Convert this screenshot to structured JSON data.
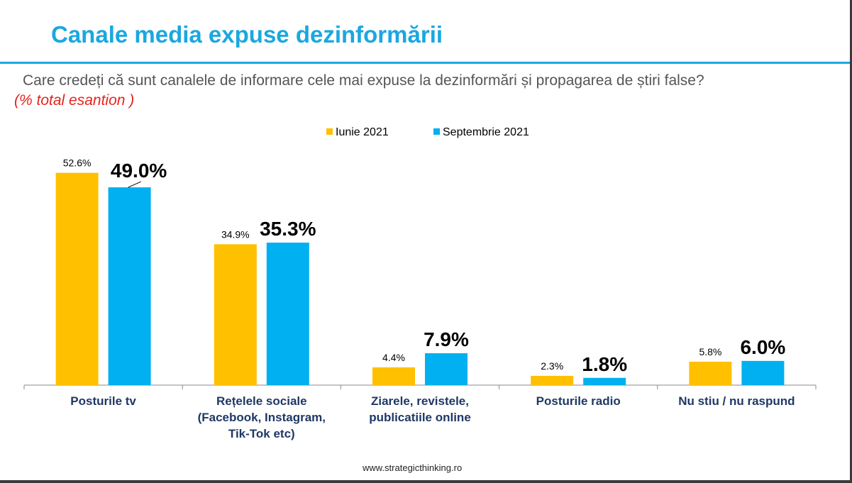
{
  "slide": {
    "title": "Canale media expuse dezinformării",
    "question": "Care credeți că sunt canalele de informare cele mai expuse la dezinformări și propagarea de știri false?",
    "sample_note": "(% total esantion )",
    "footer_url": "www.strategicthinking.ro"
  },
  "colors": {
    "title_blue": "#1ba7e0",
    "series_june": "#ffc000",
    "series_september": "#00b0f0",
    "note_red": "#e8221c"
  },
  "chart_data": {
    "type": "bar",
    "title": "",
    "xlabel": "",
    "ylabel": "",
    "ylim": [
      0,
      55
    ],
    "grid": false,
    "legend_position": "top-center",
    "categories": [
      [
        "Posturile tv"
      ],
      [
        "Rețelele sociale",
        "(Facebook, Instagram,",
        "Tik-Tok etc)"
      ],
      [
        "Ziarele, revistele,",
        "publicatiile online"
      ],
      [
        "Posturile radio"
      ],
      [
        "Nu stiu / nu raspund"
      ]
    ],
    "series": [
      {
        "name": "Iunie 2021",
        "color": "#ffc000",
        "values": [
          52.6,
          34.9,
          4.4,
          2.3,
          5.8
        ],
        "labels": [
          "52.6%",
          "34.9%",
          "4.4%",
          "2.3%",
          "5.8%"
        ]
      },
      {
        "name": "Septembrie 2021",
        "color": "#00b0f0",
        "values": [
          49.0,
          35.3,
          7.9,
          1.8,
          6.0
        ],
        "labels": [
          "49.0%",
          "35.3%",
          "7.9%",
          "1.8%",
          "6.0%"
        ]
      }
    ]
  }
}
